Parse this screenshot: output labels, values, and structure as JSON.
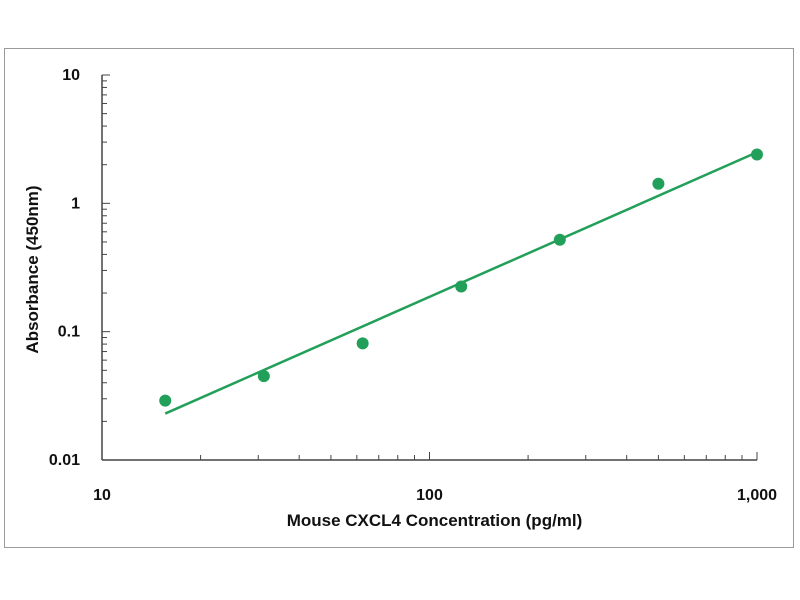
{
  "chart_data": {
    "type": "scatter",
    "title": "",
    "xlabel": "Mouse CXCL4 Concentration (pg/ml)",
    "ylabel": "Absorbance (450nm)",
    "xscale": "log",
    "yscale": "log",
    "xlim": [
      10,
      1000
    ],
    "ylim": [
      0.01,
      10
    ],
    "x_tick_labels": [
      "10",
      "100",
      "1,000"
    ],
    "y_tick_labels": [
      "0.01",
      "0.1",
      "1",
      "10"
    ],
    "grid": false,
    "legend": "none",
    "marker_color": "#22a05a",
    "line_color": "#22a05a",
    "series": [
      {
        "values": [
          {
            "x": 15.6,
            "y": 0.029
          },
          {
            "x": 31.2,
            "y": 0.045
          },
          {
            "x": 62.5,
            "y": 0.081
          },
          {
            "x": 125,
            "y": 0.225
          },
          {
            "x": 250,
            "y": 0.52
          },
          {
            "x": 500,
            "y": 1.42
          },
          {
            "x": 1000,
            "y": 2.4
          }
        ]
      }
    ],
    "fit_line": {
      "x": [
        15.6,
        1000
      ],
      "y": [
        0.023,
        2.5
      ]
    }
  }
}
